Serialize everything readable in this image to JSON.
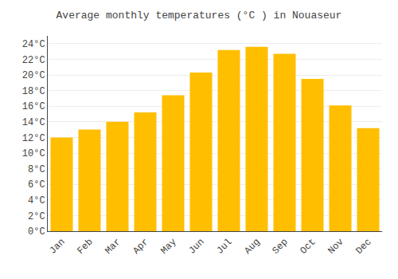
{
  "chart_data": {
    "type": "bar",
    "title": "Average monthly temperatures (°C ) in Nouaseur",
    "categories": [
      "Jan",
      "Feb",
      "Mar",
      "Apr",
      "May",
      "Jun",
      "Jul",
      "Aug",
      "Sep",
      "Oct",
      "Nov",
      "Dec"
    ],
    "values": [
      12.0,
      13.0,
      14.0,
      15.2,
      17.4,
      20.3,
      23.2,
      23.6,
      22.7,
      19.5,
      16.1,
      13.2
    ],
    "color": "#FFBE00",
    "ylim": [
      0,
      25
    ],
    "yticks": [
      {
        "value": 0,
        "label": "0°C"
      },
      {
        "value": 2,
        "label": "2°C"
      },
      {
        "value": 4,
        "label": "4°C"
      },
      {
        "value": 6,
        "label": "6°C"
      },
      {
        "value": 8,
        "label": "8°C"
      },
      {
        "value": 10,
        "label": "10°C"
      },
      {
        "value": 12,
        "label": "12°C"
      },
      {
        "value": 14,
        "label": "14°C"
      },
      {
        "value": 16,
        "label": "16°C"
      },
      {
        "value": 18,
        "label": "18°C"
      },
      {
        "value": 20,
        "label": "20°C"
      },
      {
        "value": 22,
        "label": "22°C"
      },
      {
        "value": 24,
        "label": "24°C"
      }
    ],
    "grid": true
  }
}
